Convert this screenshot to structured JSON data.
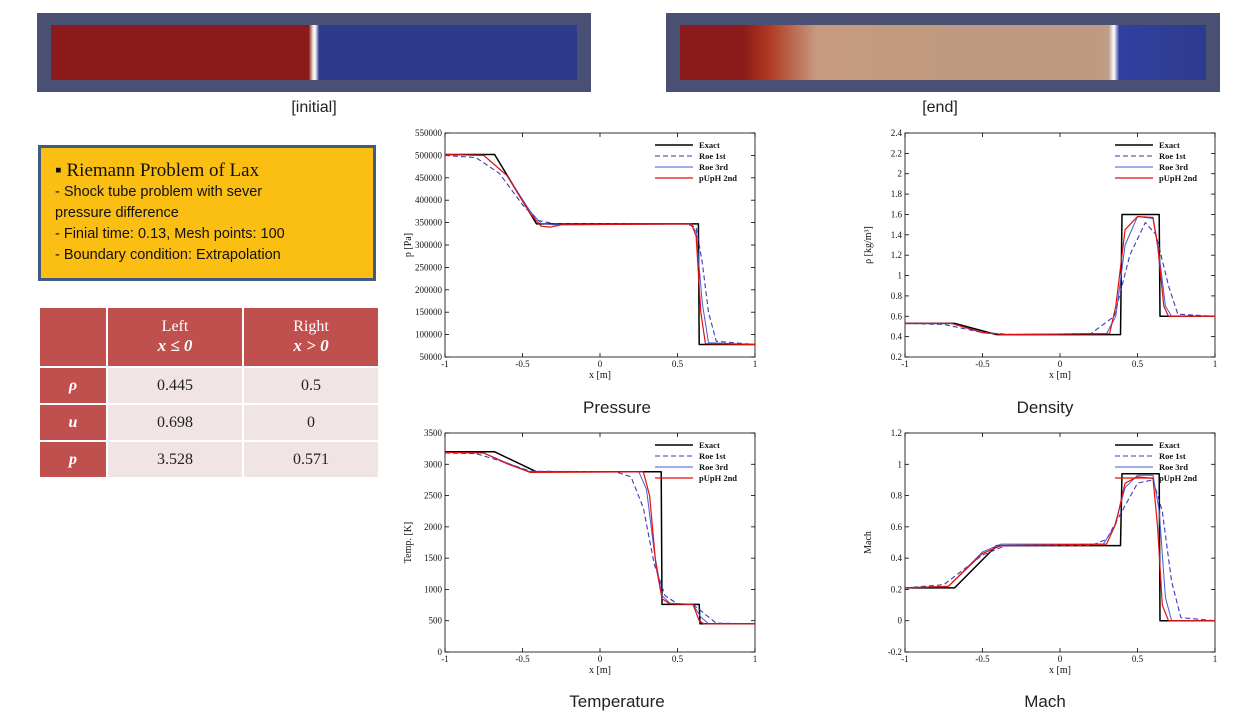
{
  "captions": {
    "initial": "[initial]",
    "end": "[end]"
  },
  "colors": {
    "left_state": "#8b1a1a",
    "right_state": "#2e3a8c",
    "mid_state": "#c09a80",
    "frame": "#4a5073",
    "box_fill": "#fbbf14",
    "box_border": "#3f5b80",
    "table_header": "#c0504d"
  },
  "info": {
    "title": "Riemann Problem of Lax",
    "lines": [
      "- Shock tube problem with sever",
      "pressure difference",
      "- Finial time: 0.13, Mesh points: 100",
      "- Boundary condition: Extrapolation"
    ]
  },
  "table": {
    "left_header": "Left",
    "left_cond": "x ≤ 0",
    "right_header": "Right",
    "right_cond": "x > 0",
    "rows": [
      {
        "label": "ρ",
        "left": "0.445",
        "right": "0.5"
      },
      {
        "label": "u",
        "left": "0.698",
        "right": "0"
      },
      {
        "label": "p",
        "left": "3.528",
        "right": "0.571"
      }
    ]
  },
  "chart_data": [
    {
      "type": "line",
      "caption": "Pressure",
      "xlabel": "x [m]",
      "ylabel": "p [Pa]",
      "xlim": [
        -1,
        1
      ],
      "ylim": [
        50000,
        550000
      ],
      "xticks": [
        -1,
        -0.5,
        0,
        0.5,
        1
      ],
      "yticks": [
        50000,
        100000,
        150000,
        200000,
        250000,
        300000,
        350000,
        400000,
        450000,
        500000,
        550000
      ],
      "legend": [
        "Exact",
        "Roe 1st",
        "Roe 3rd",
        "pUpH 2nd"
      ],
      "series": [
        {
          "name": "Exact",
          "x": [
            -1,
            -0.68,
            -0.41,
            0.62,
            0.635,
            0.64,
            1
          ],
          "y": [
            502000,
            502000,
            347000,
            347000,
            347000,
            78000,
            78000
          ]
        },
        {
          "name": "Roe 1st",
          "x": [
            -1,
            -0.8,
            -0.65,
            -0.5,
            -0.4,
            -0.3,
            0.55,
            0.62,
            0.66,
            0.7,
            0.75,
            1
          ],
          "y": [
            500000,
            495000,
            460000,
            390000,
            355000,
            348000,
            347000,
            340000,
            260000,
            150000,
            85000,
            78000
          ]
        },
        {
          "name": "Roe 3rd",
          "x": [
            -1,
            -0.75,
            -0.6,
            -0.45,
            -0.38,
            -0.3,
            0.58,
            0.62,
            0.66,
            0.7,
            1
          ],
          "y": [
            502000,
            500000,
            455000,
            375000,
            348000,
            345000,
            347000,
            330000,
            170000,
            82000,
            78000
          ]
        },
        {
          "name": "pUpH 2nd",
          "x": [
            -1,
            -0.75,
            -0.6,
            -0.45,
            -0.38,
            -0.32,
            -0.25,
            0.59,
            0.62,
            0.65,
            0.68,
            1
          ],
          "y": [
            502000,
            500000,
            455000,
            370000,
            342000,
            340000,
            345000,
            347000,
            320000,
            150000,
            80000,
            78000
          ]
        }
      ]
    },
    {
      "type": "line",
      "caption": "Density",
      "xlabel": "x [m]",
      "ylabel": "ρ [kg/m³]",
      "xlim": [
        -1,
        1
      ],
      "ylim": [
        0.2,
        2.4
      ],
      "xticks": [
        -1,
        -0.5,
        0,
        0.5,
        1
      ],
      "yticks": [
        0.2,
        0.4,
        0.6,
        0.8,
        1,
        1.2,
        1.4,
        1.6,
        1.8,
        2,
        2.2,
        2.4
      ],
      "legend": [
        "Exact",
        "Roe 1st",
        "Roe 3rd",
        "pUpH 2nd"
      ],
      "series": [
        {
          "name": "Exact",
          "x": [
            -1,
            -0.68,
            -0.41,
            0.39,
            0.4,
            0.64,
            0.645,
            1
          ],
          "y": [
            0.53,
            0.53,
            0.42,
            0.42,
            1.6,
            1.6,
            0.6,
            0.6
          ]
        },
        {
          "name": "Roe 1st",
          "x": [
            -1,
            -0.75,
            -0.5,
            -0.3,
            0.2,
            0.35,
            0.45,
            0.55,
            0.62,
            0.7,
            0.76,
            1
          ],
          "y": [
            0.53,
            0.52,
            0.44,
            0.42,
            0.43,
            0.6,
            1.2,
            1.52,
            1.4,
            0.9,
            0.62,
            0.6
          ]
        },
        {
          "name": "Roe 3rd",
          "x": [
            -1,
            -0.7,
            -0.5,
            -0.35,
            0.3,
            0.36,
            0.42,
            0.5,
            0.6,
            0.64,
            0.68,
            0.72,
            1
          ],
          "y": [
            0.53,
            0.53,
            0.44,
            0.42,
            0.43,
            0.6,
            1.3,
            1.58,
            1.56,
            1.2,
            0.7,
            0.6,
            0.6
          ]
        },
        {
          "name": "pUpH 2nd",
          "x": [
            -1,
            -0.7,
            -0.5,
            -0.35,
            0.32,
            0.36,
            0.42,
            0.5,
            0.6,
            0.63,
            0.67,
            0.7,
            1
          ],
          "y": [
            0.53,
            0.53,
            0.44,
            0.42,
            0.43,
            0.7,
            1.45,
            1.58,
            1.57,
            1.3,
            0.7,
            0.6,
            0.6
          ]
        }
      ]
    },
    {
      "type": "line",
      "caption": "Temperature",
      "xlabel": "x [m]",
      "ylabel": "Temp. [K]",
      "xlim": [
        -1,
        1
      ],
      "ylim": [
        0,
        3500
      ],
      "xticks": [
        -1,
        -0.5,
        0,
        0.5,
        1
      ],
      "yticks": [
        0,
        500,
        1000,
        1500,
        2000,
        2500,
        3000,
        3500
      ],
      "legend": [
        "Exact",
        "Roe 1st",
        "Roe 3rd",
        "pUpH 2nd"
      ],
      "series": [
        {
          "name": "Exact",
          "x": [
            -1,
            -0.68,
            -0.41,
            0.39,
            0.395,
            0.4,
            0.63,
            0.64,
            0.645,
            1
          ],
          "y": [
            3200,
            3200,
            2880,
            2880,
            2880,
            760,
            760,
            760,
            450,
            450
          ]
        },
        {
          "name": "Roe 1st",
          "x": [
            -1,
            -0.8,
            -0.6,
            -0.45,
            0.1,
            0.2,
            0.28,
            0.35,
            0.42,
            0.5,
            0.6,
            0.68,
            0.75,
            1
          ],
          "y": [
            3180,
            3170,
            3020,
            2890,
            2880,
            2800,
            2300,
            1400,
            900,
            770,
            760,
            600,
            460,
            450
          ]
        },
        {
          "name": "Roe 3rd",
          "x": [
            -1,
            -0.75,
            -0.6,
            -0.45,
            0.25,
            0.3,
            0.35,
            0.4,
            0.45,
            0.6,
            0.65,
            0.7,
            1
          ],
          "y": [
            3190,
            3180,
            3020,
            2880,
            2880,
            2600,
            1600,
            900,
            780,
            760,
            560,
            450,
            450
          ]
        },
        {
          "name": "pUpH 2nd",
          "x": [
            -1,
            -0.75,
            -0.6,
            -0.45,
            0.28,
            0.32,
            0.36,
            0.4,
            0.45,
            0.6,
            0.64,
            0.67,
            1
          ],
          "y": [
            3190,
            3180,
            3010,
            2870,
            2880,
            2500,
            1400,
            850,
            770,
            760,
            500,
            450,
            450
          ]
        }
      ]
    },
    {
      "type": "line",
      "caption": "Mach",
      "xlabel": "x [m]",
      "ylabel": "Mach",
      "xlim": [
        -1,
        1
      ],
      "ylim": [
        -0.2,
        1.2
      ],
      "xticks": [
        -1,
        -0.5,
        0,
        0.5,
        1
      ],
      "yticks": [
        -0.2,
        0,
        0.2,
        0.4,
        0.6,
        0.8,
        1,
        1.2
      ],
      "legend": [
        "Exact",
        "Roe 1st",
        "Roe 3rd",
        "pUpH 2nd"
      ],
      "series": [
        {
          "name": "Exact",
          "x": [
            -1,
            -0.68,
            -0.41,
            0.39,
            0.4,
            0.63,
            0.64,
            0.645,
            1
          ],
          "y": [
            0.21,
            0.21,
            0.48,
            0.48,
            0.94,
            0.94,
            0.94,
            0,
            0
          ]
        },
        {
          "name": "Roe 1st",
          "x": [
            -1,
            -0.75,
            -0.5,
            -0.35,
            0.2,
            0.3,
            0.4,
            0.5,
            0.6,
            0.66,
            0.72,
            0.78,
            1
          ],
          "y": [
            0.21,
            0.23,
            0.42,
            0.48,
            0.48,
            0.52,
            0.7,
            0.88,
            0.9,
            0.7,
            0.25,
            0.02,
            0
          ]
        },
        {
          "name": "Roe 3rd",
          "x": [
            -1,
            -0.72,
            -0.5,
            -0.38,
            0.28,
            0.35,
            0.42,
            0.5,
            0.6,
            0.64,
            0.68,
            0.72,
            1
          ],
          "y": [
            0.21,
            0.22,
            0.44,
            0.49,
            0.49,
            0.6,
            0.85,
            0.93,
            0.93,
            0.7,
            0.15,
            0,
            0
          ]
        },
        {
          "name": "pUpH 2nd",
          "x": [
            -1,
            -0.72,
            -0.5,
            -0.38,
            0.3,
            0.36,
            0.42,
            0.5,
            0.6,
            0.63,
            0.66,
            0.7,
            1
          ],
          "y": [
            0.21,
            0.22,
            0.43,
            0.48,
            0.49,
            0.62,
            0.88,
            0.92,
            0.91,
            0.6,
            0.1,
            0,
            0
          ]
        }
      ]
    }
  ]
}
